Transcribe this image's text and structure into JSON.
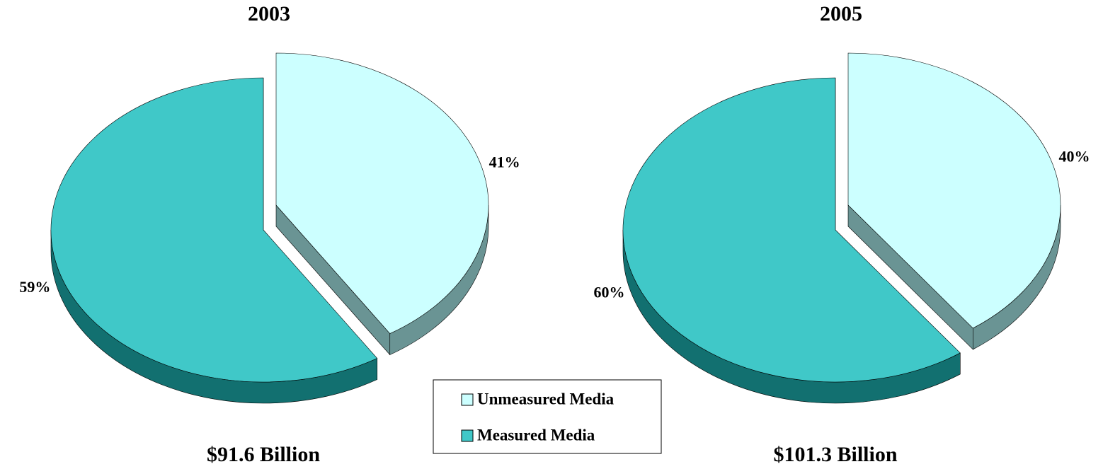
{
  "chart_data": [
    {
      "type": "pie",
      "title": "2003",
      "caption": "$91.6 Billion",
      "values": [
        41,
        59
      ],
      "value_labels": [
        "41%",
        "59%"
      ]
    },
    {
      "type": "pie",
      "title": "2005",
      "caption": "$101.3 Billion",
      "values": [
        40,
        60
      ],
      "value_labels": [
        "40%",
        "60%"
      ]
    }
  ],
  "legend": {
    "categories": [
      "Unmeasured Media",
      "Measured Media"
    ],
    "colors": [
      "#ccffff",
      "#40c8c8"
    ]
  }
}
